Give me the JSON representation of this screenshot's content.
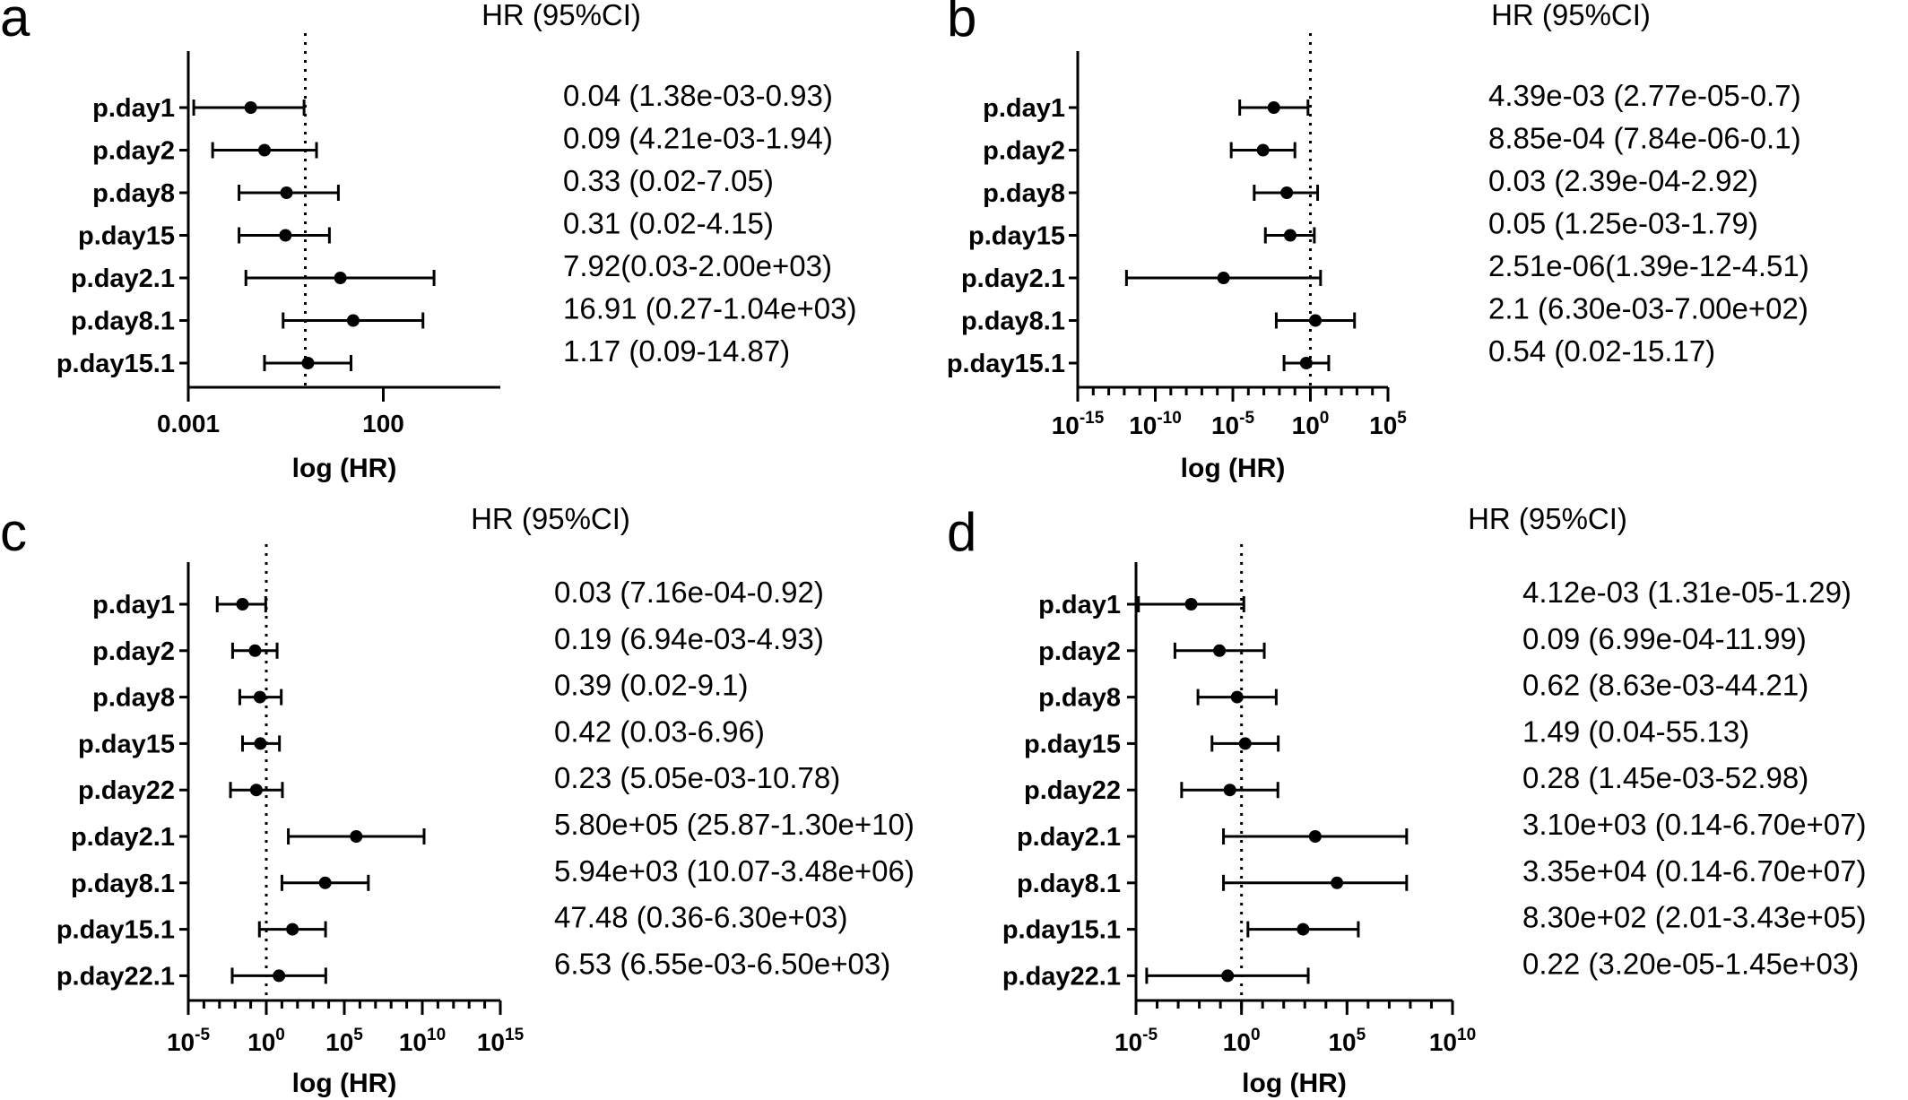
{
  "chart_data": [
    {
      "type": "forest",
      "panel": "a",
      "hr_header": "HR (95%CI)",
      "xlabel": "log (HR)",
      "x_scale": "log10",
      "xlim": [
        0.001,
        100000
      ],
      "ticks": [
        {
          "label": "0.001"
        },
        {
          "label": "100"
        }
      ],
      "reference_line": 1,
      "rows": [
        {
          "label": "p.day1",
          "hr": 0.04,
          "lo": 0.00138,
          "hi": 0.93,
          "text": "0.04 (1.38e-03-0.93)"
        },
        {
          "label": "p.day2",
          "hr": 0.09,
          "lo": 0.00421,
          "hi": 1.94,
          "text": "0.09 (4.21e-03-1.94)"
        },
        {
          "label": "p.day8",
          "hr": 0.33,
          "lo": 0.02,
          "hi": 7.05,
          "text": "0.33 (0.02-7.05)"
        },
        {
          "label": "p.day15",
          "hr": 0.31,
          "lo": 0.02,
          "hi": 4.15,
          "text": "0.31 (0.02-4.15)"
        },
        {
          "label": "p.day2.1",
          "hr": 7.92,
          "lo": 0.03,
          "hi": 2000,
          "text": "7.92(0.03-2.00e+03)"
        },
        {
          "label": "p.day8.1",
          "hr": 16.91,
          "lo": 0.27,
          "hi": 1040,
          "text": "16.91 (0.27-1.04e+03)"
        },
        {
          "label": "p.day15.1",
          "hr": 1.17,
          "lo": 0.09,
          "hi": 14.87,
          "text": "1.17 (0.09-14.87)"
        }
      ]
    },
    {
      "type": "forest",
      "panel": "b",
      "hr_header": "HR (95%CI)",
      "xlabel": "log (HR)",
      "x_scale": "log10",
      "xlim": [
        1e-15,
        100000.0
      ],
      "ticks": [
        {
          "base": "10",
          "exp": "-15"
        },
        {
          "base": "10",
          "exp": "-10"
        },
        {
          "base": "10",
          "exp": "-5"
        },
        {
          "base": "10",
          "exp": "0"
        },
        {
          "base": "10",
          "exp": "5"
        }
      ],
      "reference_line": 1,
      "rows": [
        {
          "label": "p.day1",
          "hr": 0.00439,
          "lo": 2.77e-05,
          "hi": 0.7,
          "text": "4.39e-03 (2.77e-05-0.7)"
        },
        {
          "label": "p.day2",
          "hr": 0.000885,
          "lo": 7.84e-06,
          "hi": 0.1,
          "text": "8.85e-04 (7.84e-06-0.1)"
        },
        {
          "label": "p.day8",
          "hr": 0.03,
          "lo": 0.000239,
          "hi": 2.92,
          "text": "0.03 (2.39e-04-2.92)"
        },
        {
          "label": "p.day15",
          "hr": 0.05,
          "lo": 0.00125,
          "hi": 1.79,
          "text": "0.05 (1.25e-03-1.79)"
        },
        {
          "label": "p.day2.1",
          "hr": 2.51e-06,
          "lo": 1.39e-12,
          "hi": 4.51,
          "text": "2.51e-06(1.39e-12-4.51)"
        },
        {
          "label": "p.day8.1",
          "hr": 2.1,
          "lo": 0.0063,
          "hi": 700,
          "text": "2.1 (6.30e-03-7.00e+02)"
        },
        {
          "label": "p.day15.1",
          "hr": 0.54,
          "lo": 0.02,
          "hi": 15.17,
          "text": "0.54 (0.02-15.17)"
        }
      ]
    },
    {
      "type": "forest",
      "panel": "c",
      "hr_header": "HR (95%CI)",
      "xlabel": "log (HR)",
      "x_scale": "log10",
      "xlim": [
        1e-05,
        1000000000000000.0
      ],
      "ticks": [
        {
          "base": "10",
          "exp": "-5"
        },
        {
          "base": "10",
          "exp": "0"
        },
        {
          "base": "10",
          "exp": "5"
        },
        {
          "base": "10",
          "exp": "10"
        },
        {
          "base": "10",
          "exp": "15"
        }
      ],
      "reference_line": 1,
      "rows": [
        {
          "label": "p.day1",
          "hr": 0.03,
          "lo": 0.000716,
          "hi": 0.92,
          "text": "0.03 (7.16e-04-0.92)"
        },
        {
          "label": "p.day2",
          "hr": 0.19,
          "lo": 0.00694,
          "hi": 4.93,
          "text": "0.19 (6.94e-03-4.93)"
        },
        {
          "label": "p.day8",
          "hr": 0.39,
          "lo": 0.02,
          "hi": 9.1,
          "text": "0.39 (0.02-9.1)"
        },
        {
          "label": "p.day15",
          "hr": 0.42,
          "lo": 0.03,
          "hi": 6.96,
          "text": "0.42 (0.03-6.96)"
        },
        {
          "label": "p.day22",
          "hr": 0.23,
          "lo": 0.00505,
          "hi": 10.78,
          "text": "0.23 (5.05e-03-10.78)"
        },
        {
          "label": "p.day2.1",
          "hr": 580000,
          "lo": 25.87,
          "hi": 13000000000,
          "text": "5.80e+05 (25.87-1.30e+10)"
        },
        {
          "label": "p.day8.1",
          "hr": 5940,
          "lo": 10.07,
          "hi": 3480000,
          "text": "5.94e+03 (10.07-3.48e+06)"
        },
        {
          "label": "p.day15.1",
          "hr": 47.48,
          "lo": 0.36,
          "hi": 6300,
          "text": "47.48 (0.36-6.30e+03)"
        },
        {
          "label": "p.day22.1",
          "hr": 6.53,
          "lo": 0.00655,
          "hi": 6500,
          "text": "6.53 (6.55e-03-6.50e+03)"
        }
      ]
    },
    {
      "type": "forest",
      "panel": "d",
      "hr_header": "HR (95%CI)",
      "xlabel": "log (HR)",
      "x_scale": "log10",
      "xlim": [
        1e-05,
        10000000000.0
      ],
      "ticks": [
        {
          "base": "10",
          "exp": "-5"
        },
        {
          "base": "10",
          "exp": "0"
        },
        {
          "base": "10",
          "exp": "5"
        },
        {
          "base": "10",
          "exp": "10"
        }
      ],
      "reference_line": 1,
      "rows": [
        {
          "label": "p.day1",
          "hr": 0.00412,
          "lo": 1.31e-05,
          "hi": 1.29,
          "text": "4.12e-03 (1.31e-05-1.29)"
        },
        {
          "label": "p.day2",
          "hr": 0.09,
          "lo": 0.000699,
          "hi": 11.99,
          "text": "0.09 (6.99e-04-11.99)"
        },
        {
          "label": "p.day8",
          "hr": 0.62,
          "lo": 0.00863,
          "hi": 44.21,
          "text": "0.62 (8.63e-03-44.21)"
        },
        {
          "label": "p.day15",
          "hr": 1.49,
          "lo": 0.04,
          "hi": 55.13,
          "text": "1.49 (0.04-55.13)"
        },
        {
          "label": "p.day22",
          "hr": 0.28,
          "lo": 0.00145,
          "hi": 52.98,
          "text": "0.28 (1.45e-03-52.98)"
        },
        {
          "label": "p.day2.1",
          "hr": 3100,
          "lo": 0.14,
          "hi": 67000000,
          "text": "3.10e+03 (0.14-6.70e+07)"
        },
        {
          "label": "p.day8.1",
          "hr": 33500,
          "lo": 0.14,
          "hi": 67000000,
          "text": "3.35e+04 (0.14-6.70e+07)"
        },
        {
          "label": "p.day15.1",
          "hr": 830,
          "lo": 2.01,
          "hi": 343000,
          "text": "8.30e+02 (2.01-3.43e+05)"
        },
        {
          "label": "p.day22.1",
          "hr": 0.22,
          "lo": 3.2e-05,
          "hi": 1450,
          "text": "0.22 (3.20e-05-1.45e+03)"
        }
      ]
    }
  ]
}
